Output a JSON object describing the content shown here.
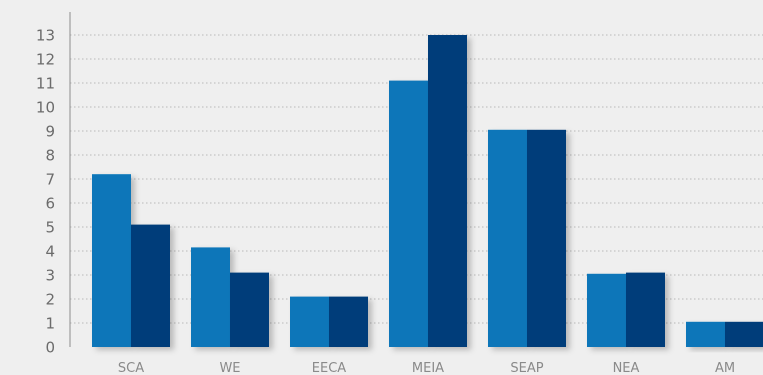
{
  "colors": {
    "background": "#efefef",
    "series_a": "#0a76b9",
    "series_b": "#063d7a"
  },
  "chart_data": {
    "type": "bar",
    "title": "",
    "xlabel": "",
    "ylabel": "",
    "categories": [
      "SCA",
      "WE",
      "EECA",
      "MEIA",
      "SEAP",
      "NEA",
      "AM"
    ],
    "series": [
      {
        "values": [
          7.2,
          4.15,
          2.1,
          11.1,
          9.05,
          3.05,
          1.05
        ]
      },
      {
        "values": [
          5.1,
          3.1,
          2.1,
          13.0,
          9.05,
          3.1,
          1.05
        ]
      }
    ],
    "ylim": [
      0,
      13
    ],
    "yticks": [
      0,
      1,
      2,
      3,
      4,
      5,
      6,
      7,
      8,
      9,
      10,
      11,
      12,
      13
    ],
    "grid": true,
    "legend": "none"
  }
}
